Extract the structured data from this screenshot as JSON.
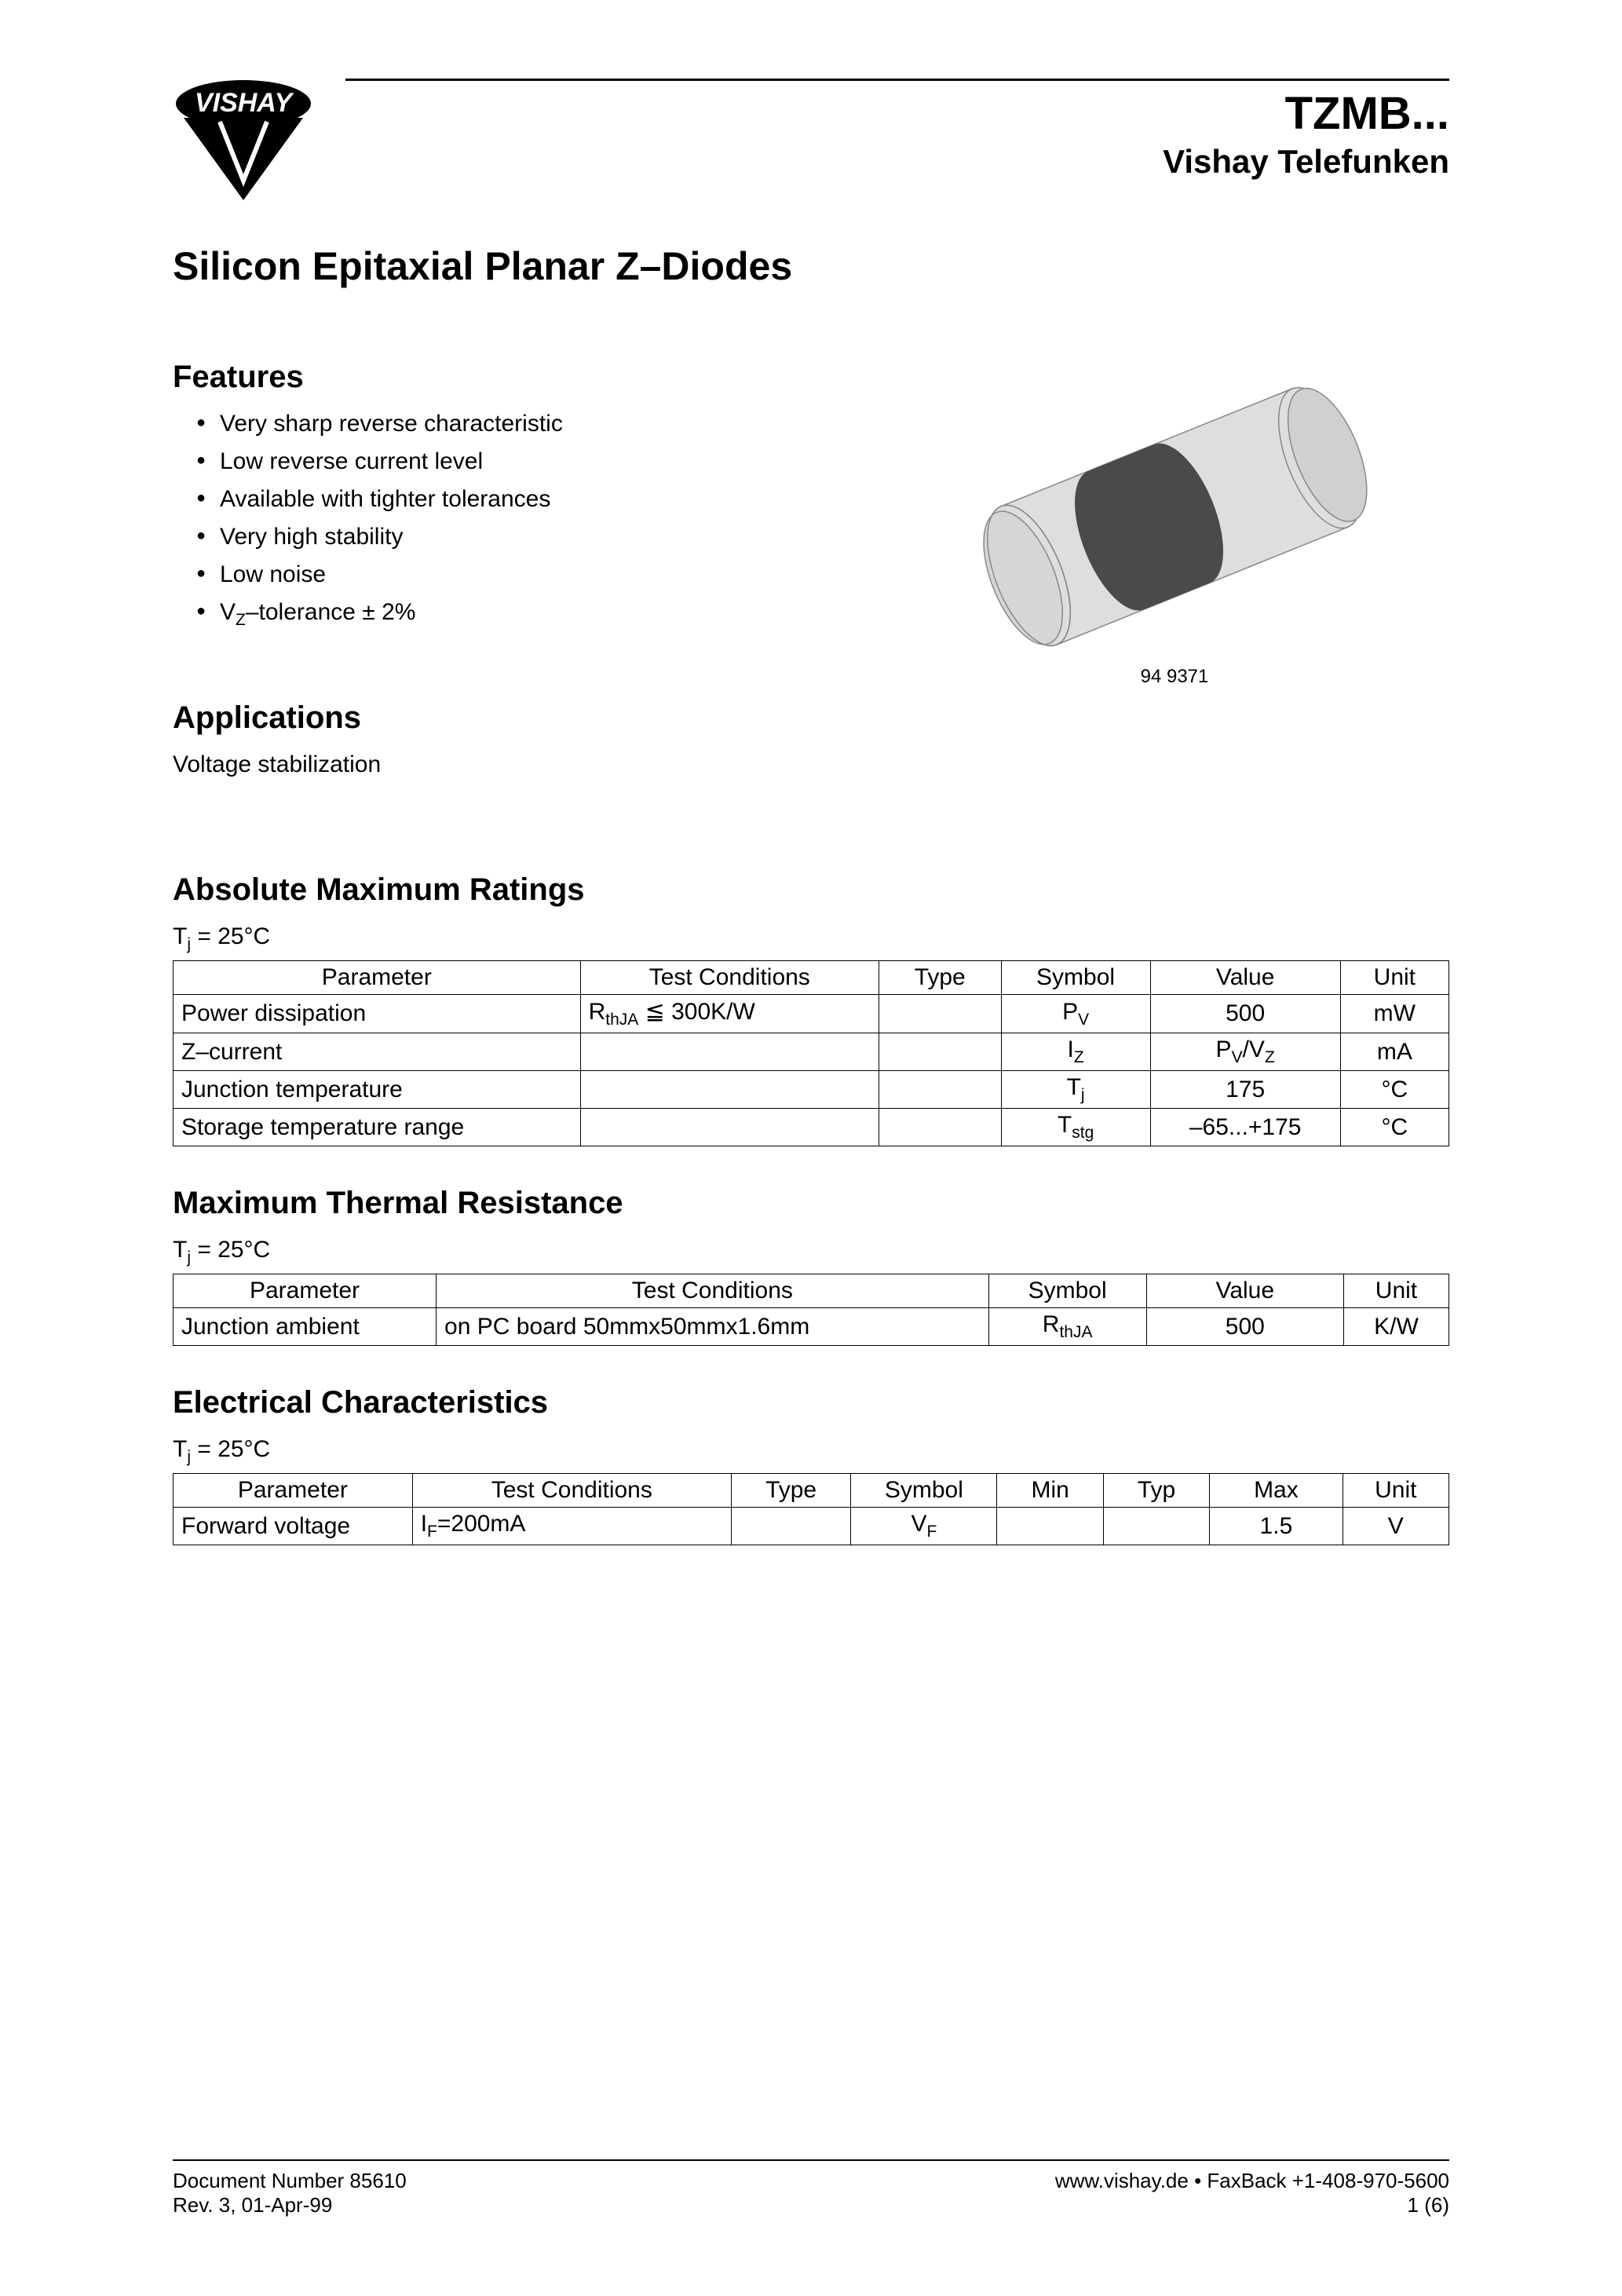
{
  "header": {
    "part_number": "TZMB...",
    "brand_line": "Vishay Telefunken",
    "logo_text": "VISHAY"
  },
  "doc_title": "Silicon Epitaxial Planar Z–Diodes",
  "features": {
    "heading": "Features",
    "items": [
      "Very sharp reverse characteristic",
      "Low reverse current level",
      "Available with tighter tolerances",
      "Very high stability",
      "Low noise",
      "V_Z–tolerance ± 2%"
    ]
  },
  "applications": {
    "heading": "Applications",
    "text": "Voltage stabilization"
  },
  "image_caption": "94 9371",
  "abs_max": {
    "heading": "Absolute Maximum Ratings",
    "condition": "T_j = 25°C",
    "headers": [
      "Parameter",
      "Test Conditions",
      "Type",
      "Symbol",
      "Value",
      "Unit"
    ],
    "rows": [
      [
        "Power dissipation",
        "R_thJA ≦ 300K/W",
        "",
        "P_V",
        "500",
        "mW"
      ],
      [
        "Z–current",
        "",
        "",
        "I_Z",
        "P_V/V_Z",
        "mA"
      ],
      [
        "Junction temperature",
        "",
        "",
        "T_j",
        "175",
        "°C"
      ],
      [
        "Storage temperature range",
        "",
        "",
        "T_stg",
        "–65...+175",
        "°C"
      ]
    ],
    "col_widths": [
      "30%",
      "22%",
      "9%",
      "11%",
      "14%",
      "8%"
    ]
  },
  "thermal": {
    "heading": "Maximum Thermal Resistance",
    "condition": "T_j = 25°C",
    "headers": [
      "Parameter",
      "Test Conditions",
      "Symbol",
      "Value",
      "Unit"
    ],
    "rows": [
      [
        "Junction ambient",
        "on PC board 50mmx50mmx1.6mm",
        "R_thJA",
        "500",
        "K/W"
      ]
    ],
    "col_widths": [
      "20%",
      "42%",
      "12%",
      "15%",
      "8%"
    ]
  },
  "electrical": {
    "heading": "Electrical Characteristics",
    "condition": "T_j = 25°C",
    "headers": [
      "Parameter",
      "Test Conditions",
      "Type",
      "Symbol",
      "Min",
      "Typ",
      "Max",
      "Unit"
    ],
    "rows": [
      [
        "Forward voltage",
        "I_F=200mA",
        "",
        "V_F",
        "",
        "",
        "1.5",
        "V"
      ]
    ],
    "col_widths": [
      "18%",
      "24%",
      "9%",
      "11%",
      "8%",
      "8%",
      "10%",
      "8%"
    ]
  },
  "footer": {
    "doc_number": "Document Number 85610",
    "rev": "Rev. 3, 01-Apr-99",
    "web": "www.vishay.de • FaxBack +1-408-970-5600",
    "page": "1 (6)"
  },
  "diode_svg": {
    "body_fill": "#dedede",
    "band_fill": "#4a4a4a",
    "stroke": "#666666",
    "bg": "#ffffff"
  }
}
